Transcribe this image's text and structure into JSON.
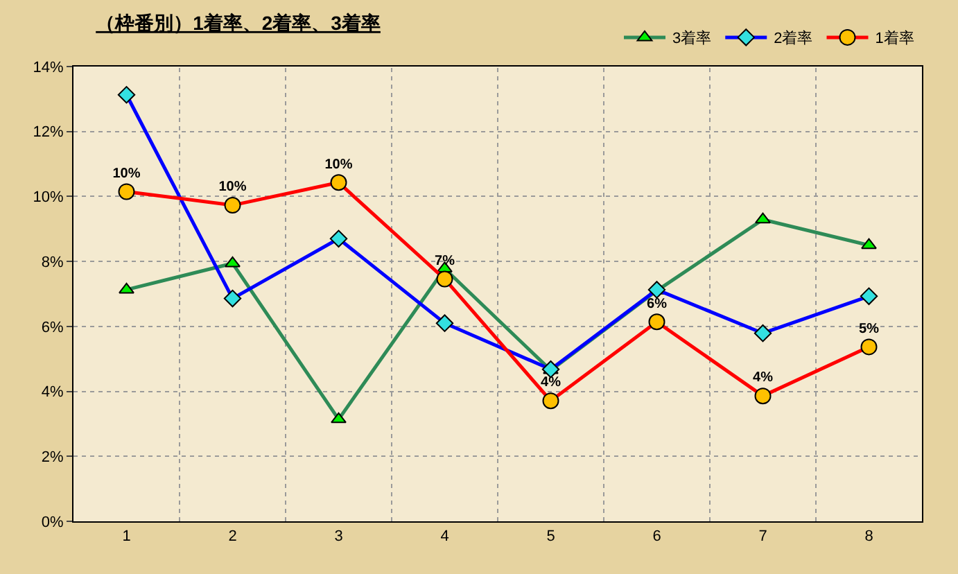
{
  "chart_data": {
    "type": "line",
    "title": "（枠番別）1着率、2着率、3着率",
    "categories": [
      "1",
      "2",
      "3",
      "4",
      "5",
      "6",
      "7",
      "8"
    ],
    "series": [
      {
        "name": "3着率",
        "color": "#2e8b57",
        "marker": "triangle",
        "colors": [
          "#00ee00",
          "#00ee00",
          "#00ee00",
          "#00ee00",
          "#00ee00",
          "#00ee00",
          "#00ee00",
          "#00ee00"
        ],
        "values": [
          7.13,
          7.94,
          3.14,
          7.78,
          4.65,
          7.1,
          9.29,
          8.5
        ]
      },
      {
        "name": "2着率",
        "color": "#0000ff",
        "marker": "diamond",
        "colors": [
          "#33e0e0",
          "#33e0e0",
          "#33e0e0",
          "#33e0e0",
          "#33e0e0",
          "#33e0e0",
          "#33e0e0",
          "#33e0e0"
        ],
        "values": [
          13.13,
          6.86,
          8.7,
          6.1,
          4.68,
          7.13,
          5.79,
          6.93
        ]
      },
      {
        "name": "1着率",
        "color": "#ff0000",
        "marker": "circle",
        "colors": [
          "#ffc000",
          "#ffc000",
          "#ffc000",
          "#ffc000",
          "#ffc000",
          "#ffc000",
          "#ffc000",
          "#ffc000"
        ],
        "values": [
          10.15,
          9.73,
          10.43,
          7.46,
          3.71,
          6.14,
          3.86,
          5.37
        ],
        "value_labels": [
          "10%",
          "10%",
          "10%",
          "7%",
          "4%",
          "6%",
          "4%",
          "5%"
        ]
      }
    ],
    "ylim": [
      0,
      14
    ],
    "yticks": [
      {
        "value": 0,
        "label": "0%"
      },
      {
        "value": 2,
        "label": "2%"
      },
      {
        "value": 4,
        "label": "4%"
      },
      {
        "value": 6,
        "label": "6%"
      },
      {
        "value": 8,
        "label": "8%"
      },
      {
        "value": 10,
        "label": "10%"
      },
      {
        "value": 12,
        "label": "12%"
      },
      {
        "value": 14,
        "label": "14%"
      }
    ],
    "grid": true,
    "legend": "top right",
    "line_style": "solid"
  }
}
